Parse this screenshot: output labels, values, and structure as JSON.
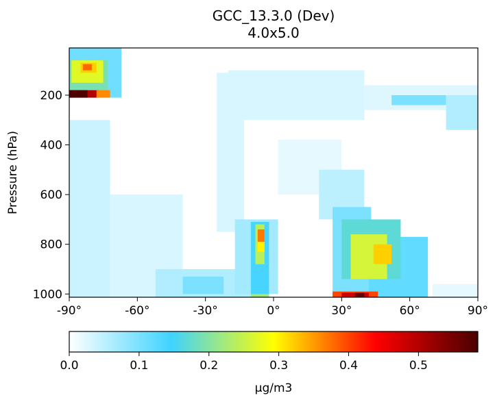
{
  "chart_data": {
    "type": "heatmap",
    "title": "GCC_13.3.0 (Dev)",
    "subtitle": "4.0x5.0",
    "ylabel": "Pressure (hPa)",
    "xlabel": "",
    "x_range": [
      -90,
      90
    ],
    "y_range_hPa": [
      1013,
      10
    ],
    "y_axis_inverted": true,
    "x_ticks": [
      {
        "value": -90,
        "label": "-90°"
      },
      {
        "value": -60,
        "label": "-60°"
      },
      {
        "value": -30,
        "label": "-30°"
      },
      {
        "value": 0,
        "label": "0°"
      },
      {
        "value": 30,
        "label": "30°"
      },
      {
        "value": 60,
        "label": "60°"
      },
      {
        "value": 90,
        "label": "90°"
      }
    ],
    "y_ticks": [
      {
        "value": 200,
        "label": "200"
      },
      {
        "value": 400,
        "label": "400"
      },
      {
        "value": 600,
        "label": "600"
      },
      {
        "value": 800,
        "label": "800"
      },
      {
        "value": 1000,
        "label": "1000"
      }
    ],
    "colorbar": {
      "label": "µg/m3",
      "range": [
        0,
        0.585
      ],
      "ticks": [
        {
          "value": 0.0,
          "label": "0.0"
        },
        {
          "value": 0.1,
          "label": "0.1"
        },
        {
          "value": 0.2,
          "label": "0.2"
        },
        {
          "value": 0.3,
          "label": "0.3"
        },
        {
          "value": 0.4,
          "label": "0.4"
        },
        {
          "value": 0.5,
          "label": "0.5"
        }
      ],
      "colormap": [
        {
          "stop": 0.0,
          "color": "#ffffff"
        },
        {
          "stop": 0.25,
          "color": "#3fd3ff"
        },
        {
          "stop": 0.5,
          "color": "#ffff00"
        },
        {
          "stop": 0.75,
          "color": "#ff0000"
        },
        {
          "stop": 1.0,
          "color": "#4a0000"
        }
      ]
    },
    "grid": false,
    "regions": [
      {
        "lat": [
          -91,
          91
        ],
        "p": [
          1013,
          10
        ],
        "value": 0.0
      },
      {
        "lat": [
          -91,
          -72
        ],
        "p": [
          1013,
          300
        ],
        "value": 0.04
      },
      {
        "lat": [
          -72,
          -40
        ],
        "p": [
          1013,
          600
        ],
        "value": 0.03
      },
      {
        "lat": [
          -52,
          -2
        ],
        "p": [
          1013,
          900
        ],
        "value": 0.06
      },
      {
        "lat": [
          -40,
          -22
        ],
        "p": [
          1000,
          930
        ],
        "value": 0.1
      },
      {
        "lat": [
          -25,
          -13
        ],
        "p": [
          750,
          110
        ],
        "value": 0.03
      },
      {
        "lat": [
          -17,
          2
        ],
        "p": [
          1000,
          700
        ],
        "value": 0.07
      },
      {
        "lat": [
          -10,
          -2
        ],
        "p": [
          1013,
          710
        ],
        "value": 0.14
      },
      {
        "lat": [
          -8,
          -4
        ],
        "p": [
          880,
          720
        ],
        "value": 0.24
      },
      {
        "lat": [
          -7,
          -4
        ],
        "p": [
          830,
          780
        ],
        "value": 0.3
      },
      {
        "lat": [
          -7,
          -4
        ],
        "p": [
          790,
          740
        ],
        "value": 0.37
      },
      {
        "lat": [
          -10,
          -2
        ],
        "p": [
          1013,
          1000
        ],
        "value": 0.22
      },
      {
        "lat": [
          -20,
          40
        ],
        "p": [
          300,
          100
        ],
        "value": 0.03
      },
      {
        "lat": [
          2,
          30
        ],
        "p": [
          600,
          380
        ],
        "value": 0.02
      },
      {
        "lat": [
          20,
          40
        ],
        "p": [
          700,
          500
        ],
        "value": 0.05
      },
      {
        "lat": [
          26,
          43
        ],
        "p": [
          1013,
          650
        ],
        "value": 0.1
      },
      {
        "lat": [
          42,
          68
        ],
        "p": [
          1013,
          770
        ],
        "value": 0.12
      },
      {
        "lat": [
          30,
          56
        ],
        "p": [
          940,
          700
        ],
        "value": 0.17
      },
      {
        "lat": [
          34,
          50
        ],
        "p": [
          940,
          760
        ],
        "value": 0.26
      },
      {
        "lat": [
          44,
          52
        ],
        "p": [
          880,
          800
        ],
        "value": 0.32
      },
      {
        "lat": [
          26,
          46
        ],
        "p": [
          1013,
          990
        ],
        "value": 0.4
      },
      {
        "lat": [
          30,
          42
        ],
        "p": [
          1013,
          995
        ],
        "value": 0.48
      },
      {
        "lat": [
          36,
          40
        ],
        "p": [
          1013,
          995
        ],
        "value": 0.56
      },
      {
        "lat": [
          40,
          90
        ],
        "p": [
          260,
          160
        ],
        "value": 0.025
      },
      {
        "lat": [
          52,
          76
        ],
        "p": [
          240,
          200
        ],
        "value": 0.1
      },
      {
        "lat": [
          76,
          91
        ],
        "p": [
          340,
          200
        ],
        "value": 0.06
      },
      {
        "lat": [
          70,
          91
        ],
        "p": [
          1013,
          960
        ],
        "value": 0.02
      },
      {
        "lat": [
          -91,
          -67
        ],
        "p": [
          210,
          10
        ],
        "value": 0.11
      },
      {
        "lat": [
          -91,
          -73
        ],
        "p": [
          210,
          60
        ],
        "value": 0.19
      },
      {
        "lat": [
          -89,
          -75
        ],
        "p": [
          150,
          60
        ],
        "value": 0.27
      },
      {
        "lat": [
          -85,
          -78
        ],
        "p": [
          110,
          70
        ],
        "value": 0.32
      },
      {
        "lat": [
          -84,
          -80
        ],
        "p": [
          100,
          75
        ],
        "value": 0.38
      },
      {
        "lat": [
          -91,
          -77
        ],
        "p": [
          210,
          180
        ],
        "value": 0.5
      },
      {
        "lat": [
          -91,
          -82
        ],
        "p": [
          210,
          180
        ],
        "value": 0.58
      },
      {
        "lat": [
          -78,
          -72
        ],
        "p": [
          210,
          180
        ],
        "value": 0.36
      }
    ]
  }
}
